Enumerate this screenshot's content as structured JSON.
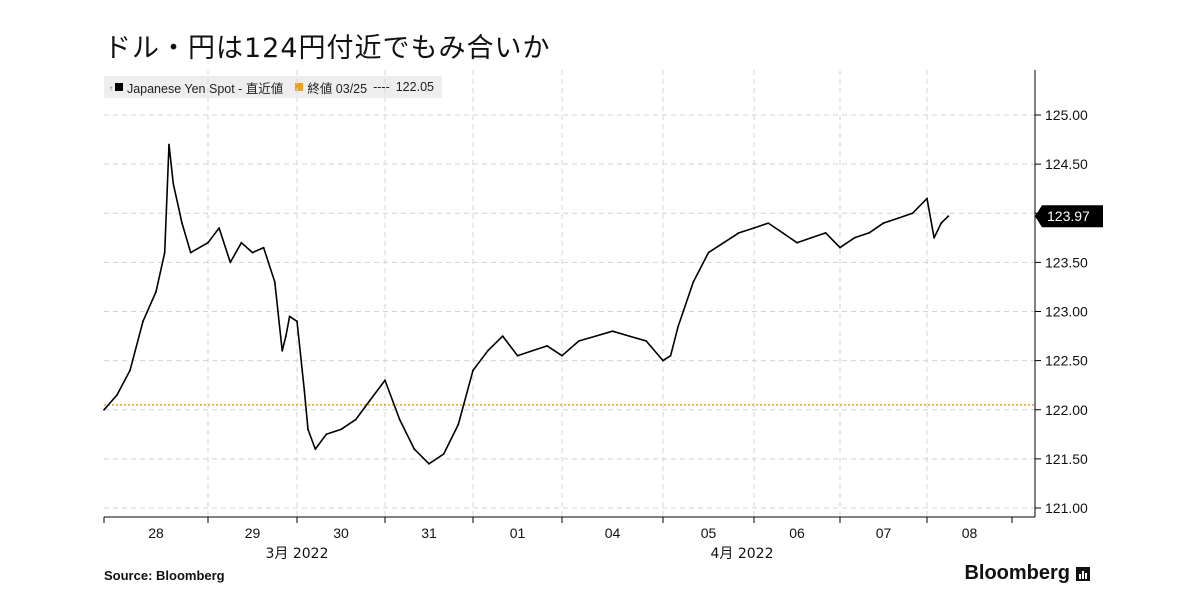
{
  "headline": "ドル・円は124円付近でもみ合いか",
  "legend": {
    "series_marker": "ₜ",
    "series_label": "Japanese Yen Spot - 直近値",
    "ref_label": "終値 03/25",
    "ref_dashes": "----",
    "ref_value": "122.05"
  },
  "footer": {
    "source": "Source: Bloomberg",
    "brand": "Bloomberg"
  },
  "colors": {
    "series": "#000000",
    "reference": "#f0a020",
    "grid": "#d4d4d4",
    "label_bg": "#000000"
  },
  "chart_data": {
    "type": "line",
    "title": "ドル・円は124円付近でもみ合いか",
    "ylabel": "",
    "xlabel": "",
    "ylim": [
      121.0,
      125.25
    ],
    "y_ticks": [
      "125.00",
      "124.50",
      "124.00",
      "123.50",
      "123.00",
      "122.50",
      "122.00",
      "121.50",
      "121.00"
    ],
    "x_tick_labels": [
      "28",
      "29",
      "30",
      "31",
      "01",
      "04",
      "05",
      "06",
      "07",
      "08"
    ],
    "x_month_labels": [
      "3月 2022",
      "4月 2022"
    ],
    "last_value_label": "123.97",
    "grid": true,
    "legend_position": "top-left",
    "reference_line": {
      "name": "終値 03/25",
      "value": 122.05
    },
    "series": [
      {
        "name": "Japanese Yen Spot - 直近値",
        "x": [
          "03-28 00:00",
          "03-28 03:00",
          "03-28 06:00",
          "03-28 09:00",
          "03-28 12:00",
          "03-28 14:00",
          "03-28 15:00",
          "03-28 16:00",
          "03-28 18:00",
          "03-28 20:00",
          "03-29 00:00",
          "03-29 03:00",
          "03-29 06:00",
          "03-29 09:00",
          "03-29 12:00",
          "03-29 15:00",
          "03-29 18:00",
          "03-29 20:00",
          "03-29 21:00",
          "03-29 22:00",
          "03-30 00:00",
          "03-30 02:00",
          "03-30 03:00",
          "03-30 05:00",
          "03-30 08:00",
          "03-30 12:00",
          "03-30 16:00",
          "03-30 20:00",
          "03-31 00:00",
          "03-31 04:00",
          "03-31 08:00",
          "03-31 12:00",
          "03-31 16:00",
          "03-31 20:00",
          "04-01 00:00",
          "04-01 04:00",
          "04-01 08:00",
          "04-01 12:00",
          "04-01 16:00",
          "04-01 20:00",
          "04-04 00:00",
          "04-04 04:00",
          "04-04 08:00",
          "04-04 12:00",
          "04-04 16:00",
          "04-04 20:00",
          "04-05 00:00",
          "04-05 02:00",
          "04-05 04:00",
          "04-05 08:00",
          "04-05 12:00",
          "04-05 16:00",
          "04-05 20:00",
          "04-06 00:00",
          "04-06 04:00",
          "04-06 08:00",
          "04-06 12:00",
          "04-06 16:00",
          "04-06 20:00",
          "04-07 00:00",
          "04-07 04:00",
          "04-07 08:00",
          "04-07 12:00",
          "04-07 16:00",
          "04-07 20:00",
          "04-08 00:00",
          "04-08 02:00",
          "04-08 04:00",
          "04-08 06:00"
        ],
        "values": [
          122.0,
          122.15,
          122.4,
          122.9,
          123.2,
          123.6,
          124.7,
          124.3,
          123.9,
          123.6,
          123.7,
          123.85,
          123.5,
          123.7,
          123.6,
          123.65,
          123.3,
          122.6,
          122.75,
          122.95,
          122.9,
          122.2,
          121.8,
          121.6,
          121.75,
          121.8,
          121.9,
          122.1,
          122.3,
          121.9,
          121.6,
          121.45,
          121.55,
          121.85,
          122.4,
          122.6,
          122.75,
          122.55,
          122.6,
          122.65,
          122.55,
          122.7,
          122.75,
          122.8,
          122.75,
          122.7,
          122.5,
          122.55,
          122.85,
          123.3,
          123.6,
          123.7,
          123.8,
          123.85,
          123.9,
          123.8,
          123.7,
          123.75,
          123.8,
          123.65,
          123.75,
          123.8,
          123.9,
          123.95,
          124.0,
          124.15,
          123.75,
          123.9,
          123.97
        ]
      }
    ]
  }
}
